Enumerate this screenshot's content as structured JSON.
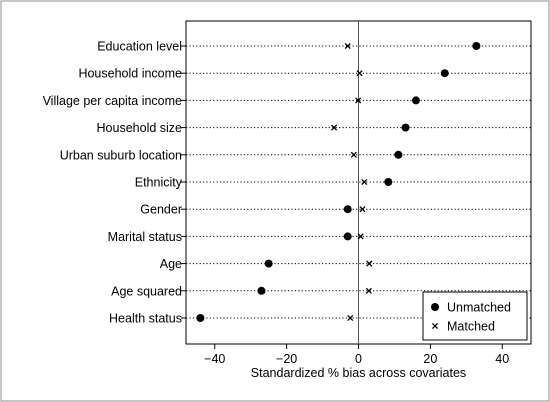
{
  "chart_data": {
    "type": "scatter",
    "title": "",
    "xlabel": "Standardized % bias across covariates",
    "ylabel": "",
    "xlim": [
      -48,
      48
    ],
    "xticks": [
      -40,
      -20,
      0,
      20,
      40
    ],
    "xtick_labels": [
      "−40",
      "−20",
      "0",
      "20",
      "40"
    ],
    "grid": "dotted horizontal line per covariate",
    "reference_line_x": 0,
    "categories": [
      "Education level",
      "Household income",
      "Village per capita income",
      "Household size",
      "Urban suburb location",
      "Ethnicity",
      "Gender",
      "Marital status",
      "Age",
      "Age squared",
      "Health status"
    ],
    "series": [
      {
        "name": "Unmatched",
        "marker": "filled-circle",
        "values": [
          32.8,
          24.0,
          16.0,
          13.1,
          11.1,
          8.3,
          -3.0,
          -3.0,
          -25.0,
          -27.0,
          -44.0
        ]
      },
      {
        "name": "Matched",
        "marker": "x-cross",
        "values": [
          -3.0,
          0.3,
          -0.1,
          -6.8,
          -1.3,
          1.6,
          1.1,
          0.6,
          3.0,
          2.9,
          -2.3
        ]
      }
    ],
    "legend": {
      "position": "bottom-right",
      "entries": [
        "Unmatched",
        "Matched"
      ]
    }
  }
}
